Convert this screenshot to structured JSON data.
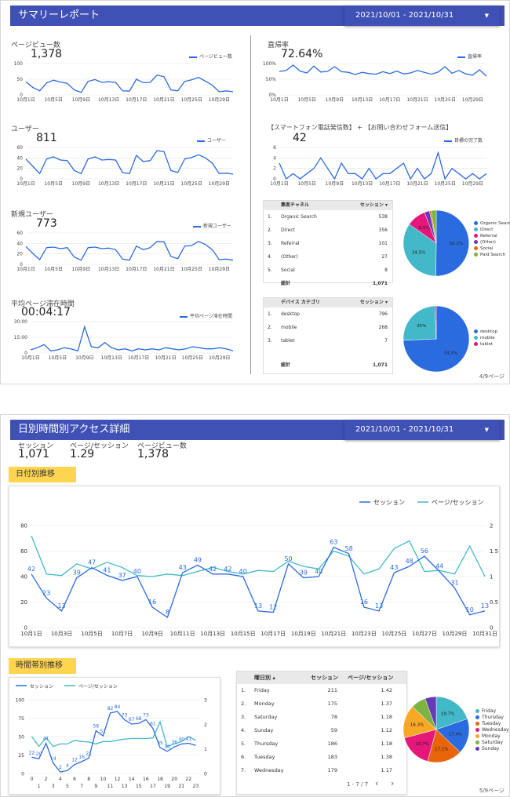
{
  "colors": {
    "blue": "#2b6be0",
    "teal": "#42b8c8",
    "banner": "#3f51b5",
    "yellow": "#ffd54f"
  },
  "page1": {
    "title": "サマリーレポート",
    "date_range": "2021/10/01 - 2021/10/31",
    "caret": "▼",
    "page_number": "4/9ページ",
    "x_ticks": [
      "10月1日",
      "10月5日",
      "10月9日",
      "10月13日",
      "10月17日",
      "10月21日",
      "10月25日",
      "10月29日"
    ],
    "metrics": {
      "pageviews": {
        "label": "ページビュー数",
        "value": "1,378",
        "legend": "ページビュー数",
        "y_ticks": [
          "0",
          "50",
          "100"
        ],
        "ymax": 100,
        "values": [
          42,
          24,
          13,
          38,
          47,
          41,
          37,
          16,
          8,
          43,
          49,
          40,
          42,
          40,
          13,
          12,
          50,
          39,
          40,
          63,
          58,
          16,
          13,
          43,
          48,
          56,
          44,
          31,
          10,
          13,
          10
        ]
      },
      "users": {
        "label": "ユーザー",
        "value": "811",
        "legend": "ユーザー",
        "y_ticks": [
          "0",
          "20",
          "40",
          "60"
        ],
        "ymax": 60,
        "values": [
          38,
          24,
          10,
          38,
          42,
          36,
          35,
          16,
          10,
          38,
          42,
          36,
          37,
          36,
          12,
          10,
          45,
          33,
          35,
          54,
          52,
          16,
          12,
          38,
          41,
          46,
          40,
          30,
          10,
          11,
          9
        ]
      },
      "new_users": {
        "label": "新規ユーザー",
        "value": "773",
        "legend": "新規ユーザー",
        "y_ticks": [
          "0",
          "20",
          "40",
          "60"
        ],
        "ymax": 60,
        "values": [
          34,
          21,
          9,
          32,
          33,
          30,
          32,
          14,
          8,
          32,
          33,
          30,
          31,
          28,
          10,
          8,
          35,
          28,
          32,
          44,
          43,
          15,
          11,
          35,
          36,
          44,
          38,
          28,
          9,
          10,
          8
        ]
      },
      "avg_time": {
        "label": "平均ページ滞在時間",
        "value": "00:04:17",
        "legend": "平均ページ滞在時間",
        "y_ticks": [
          "0",
          "15:00",
          "30:00"
        ],
        "ymax": 30,
        "values": [
          3,
          5,
          8,
          2,
          3,
          5,
          4,
          2,
          25,
          6,
          5,
          10,
          5,
          3,
          4,
          2,
          4,
          3,
          4,
          3,
          5,
          4,
          3,
          4,
          6,
          5,
          4,
          4,
          5,
          4,
          2
        ]
      },
      "bounce": {
        "label": "直帰率",
        "value": "72.64%",
        "legend": "直帰率",
        "y_ticks": [
          "0%",
          "50%",
          "100%"
        ],
        "ymax": 100,
        "values": [
          75,
          78,
          95,
          76,
          70,
          92,
          73,
          75,
          90,
          74,
          72,
          65,
          72,
          68,
          66,
          74,
          68,
          76,
          67,
          70,
          78,
          72,
          66,
          73,
          90,
          69,
          78,
          67,
          63,
          80,
          60
        ]
      },
      "goals": {
        "label": "【スマートフォン電話発信数】 + 【お問い合わせフォーム送信】",
        "value": "42",
        "legend": "目標の完了数",
        "y_ticks": [
          "0",
          "2",
          "4",
          "6"
        ],
        "ymax": 6,
        "values": [
          3,
          0,
          1,
          0,
          1,
          2,
          4,
          2,
          0,
          3,
          1,
          1,
          0,
          2,
          0,
          1,
          1,
          2,
          3,
          0,
          2,
          0,
          1,
          5,
          0,
          2,
          1,
          0,
          1,
          0,
          1
        ]
      }
    },
    "channel_table": {
      "headers": [
        "集客チャネル",
        "セッション ▾"
      ],
      "rows": [
        {
          "n": "1.",
          "name": "Organic Search",
          "sessions": "538"
        },
        {
          "n": "2.",
          "name": "Direct",
          "sessions": "356"
        },
        {
          "n": "3.",
          "name": "Referral",
          "sessions": "101"
        },
        {
          "n": "4.",
          "name": "(Other)",
          "sessions": "27"
        },
        {
          "n": "5.",
          "name": "Social",
          "sessions": "8"
        }
      ],
      "total_label": "総計",
      "total": "1,071"
    },
    "channel_pie": {
      "slices": [
        {
          "name": "Organic Search",
          "value": 50.2,
          "color": "#2b6be0",
          "label": "50.2%"
        },
        {
          "name": "Direct",
          "value": 34.5,
          "color": "#42b8c8",
          "label": "34.5%"
        },
        {
          "name": "Referral",
          "value": 9.5,
          "color": "#e5177b",
          "label": "9.5%"
        },
        {
          "name": "(Other)",
          "value": 2.5,
          "color": "#673ab7",
          "label": ""
        },
        {
          "name": "Social",
          "value": 0.8,
          "color": "#e8650c",
          "label": ""
        },
        {
          "name": "Paid Search",
          "value": 2.5,
          "color": "#7cb342",
          "label": ""
        }
      ]
    },
    "device_table": {
      "headers": [
        "デバイス カテゴリ",
        "セッション ▾"
      ],
      "rows": [
        {
          "n": "1.",
          "name": "desktop",
          "sessions": "796"
        },
        {
          "n": "2.",
          "name": "mobile",
          "sessions": "268"
        },
        {
          "n": "3.",
          "name": "tablet",
          "sessions": "7"
        }
      ],
      "total_label": "総計",
      "total": "1,071"
    },
    "device_pie": {
      "slices": [
        {
          "name": "desktop",
          "value": 74.3,
          "color": "#2b6be0",
          "label": "74.3%"
        },
        {
          "name": "mobile",
          "value": 25,
          "color": "#42b8c8",
          "label": "25%"
        },
        {
          "name": "tablet",
          "value": 0.7,
          "color": "#e5177b",
          "label": ""
        }
      ]
    }
  },
  "page2": {
    "title": "日別時間別アクセス詳細",
    "date_range": "2021/10/01 - 2021/10/31",
    "caret": "▼",
    "page_number": "5/9ページ",
    "kpis": [
      {
        "label": "セッション",
        "value": "1,071"
      },
      {
        "label": "ページ/セッション",
        "value": "1.29"
      },
      {
        "label": "ページビュー数",
        "value": "1,378"
      }
    ],
    "daily_heading": "日付別推移",
    "hourly_heading": "時間帯別推移",
    "weekday_table": {
      "headers": [
        "曜日別 ▴",
        "セッション",
        "ページ/セッション"
      ],
      "rows": [
        {
          "n": "1.",
          "day": "Friday",
          "sessions": "211",
          "pps": "1.42"
        },
        {
          "n": "2.",
          "day": "Monday",
          "sessions": "175",
          "pps": "1.37"
        },
        {
          "n": "3.",
          "day": "Saturday",
          "sessions": "78",
          "pps": "1.18"
        },
        {
          "n": "4.",
          "day": "Sunday",
          "sessions": "59",
          "pps": "1.12"
        },
        {
          "n": "5.",
          "day": "Thursday",
          "sessions": "186",
          "pps": "1.18"
        },
        {
          "n": "6.",
          "day": "Tuesday",
          "sessions": "183",
          "pps": "1.38"
        },
        {
          "n": "7.",
          "day": "Wednesday",
          "sessions": "179",
          "pps": "1.17"
        }
      ],
      "pager": "1 - 7 / 7",
      "prev": "‹",
      "next": "›"
    },
    "weekday_pie": {
      "slices": [
        {
          "name": "Friday",
          "value": 19.7,
          "color": "#42b8c8",
          "label": "19.7%"
        },
        {
          "name": "Thursday",
          "value": 17.4,
          "color": "#2b6be0",
          "label": "17.4%"
        },
        {
          "name": "Tuesday",
          "value": 17.1,
          "color": "#e8650c",
          "label": "17.1%"
        },
        {
          "name": "Wednesday",
          "value": 16.7,
          "color": "#e5177b",
          "label": "16.7%"
        },
        {
          "name": "Monday",
          "value": 16.3,
          "color": "#f9a825",
          "label": "16.3%"
        },
        {
          "name": "Saturday",
          "value": 7.3,
          "color": "#7cb342",
          "label": ""
        },
        {
          "name": "Sunday",
          "value": 5.5,
          "color": "#673ab7",
          "label": ""
        }
      ]
    }
  },
  "chart_data": [
    {
      "type": "line",
      "title": "日付別推移",
      "x": [
        "10月1日",
        "10月2日",
        "10月3日",
        "10月4日",
        "10月5日",
        "10月6日",
        "10月7日",
        "10月8日",
        "10月9日",
        "10月10日",
        "10月11日",
        "10月12日",
        "10月13日",
        "10月14日",
        "10月15日",
        "10月16日",
        "10月17日",
        "10月18日",
        "10月19日",
        "10月20日",
        "10月21日",
        "10月22日",
        "10月23日",
        "10月24日",
        "10月25日",
        "10月26日",
        "10月27日",
        "10月28日",
        "10月29日",
        "10月30日",
        "10月31日"
      ],
      "x_ticks": [
        "10月1日",
        "10月3日",
        "10月5日",
        "10月7日",
        "10月9日",
        "10月11日",
        "10月13日",
        "10月15日",
        "10月17日",
        "10月19日",
        "10月21日",
        "10月23日",
        "10月25日",
        "10月27日",
        "10月29日",
        "10月31日"
      ],
      "series": [
        {
          "name": "セッション",
          "axis": "left",
          "values": [
            42,
            23,
            13,
            39,
            47,
            41,
            37,
            40,
            16,
            8,
            43,
            49,
            42,
            42,
            40,
            13,
            12,
            50,
            39,
            40,
            63,
            58,
            16,
            13,
            43,
            48,
            56,
            44,
            31,
            10,
            13
          ],
          "labels": [
            "42",
            "23",
            "13",
            "39",
            "47",
            "41",
            "37",
            "40",
            "16",
            "8",
            "43",
            "49",
            "42",
            "42",
            "40",
            "13",
            "12",
            "50",
            "39",
            "40",
            "63",
            "58",
            "16",
            "13",
            "43",
            "48",
            "56",
            "44",
            "31",
            "10",
            "13"
          ]
        },
        {
          "name": "ページ/セッション",
          "axis": "right",
          "values": [
            1.8,
            1.05,
            1.02,
            1.25,
            1.15,
            1.28,
            1.18,
            1.02,
            1.0,
            1.05,
            1.02,
            1.1,
            1.18,
            1.1,
            1.05,
            1.12,
            1.1,
            1.3,
            1.2,
            1.15,
            1.5,
            1.4,
            1.05,
            1.15,
            1.55,
            1.7,
            1.1,
            1.12,
            1.05,
            1.6,
            1.0
          ]
        }
      ],
      "ylim_left": [
        0,
        80
      ],
      "y_ticks_left": [
        "0",
        "20",
        "40",
        "60",
        "80"
      ],
      "ylim_right": [
        0,
        2
      ],
      "y_ticks_right": [
        "0",
        "0.5",
        "1",
        "1.5",
        "2"
      ],
      "legend_position": "top-right"
    },
    {
      "type": "line",
      "title": "時間帯別推移",
      "x": [
        "0",
        "1",
        "2",
        "3",
        "4",
        "5",
        "6",
        "7",
        "8",
        "9",
        "10",
        "11",
        "12",
        "13",
        "14",
        "15",
        "16",
        "17",
        "18",
        "19",
        "20",
        "21",
        "22",
        "23"
      ],
      "x_ticks_top": [
        "0",
        "2",
        "4",
        "6",
        "8",
        "10",
        "12",
        "14",
        "16",
        "18",
        "20",
        "22"
      ],
      "x_ticks_bottom": [
        "1",
        "3",
        "5",
        "7",
        "9",
        "11",
        "13",
        "15",
        "17",
        "19",
        "21",
        "23"
      ],
      "series": [
        {
          "name": "セッション",
          "axis": "left",
          "values": [
            22,
            20,
            41,
            14,
            2,
            4,
            12,
            16,
            21,
            58,
            51,
            82,
            84,
            73,
            67,
            68,
            73,
            61,
            35,
            30,
            36,
            40,
            41,
            38
          ],
          "labels": [
            "22",
            "20",
            "41",
            "14",
            "2",
            "4",
            "12",
            "16",
            "21",
            "58",
            "51",
            "82",
            "84",
            "73",
            "67",
            "68",
            "73",
            "61",
            "35",
            "30",
            "36",
            "40",
            "41",
            ""
          ]
        },
        {
          "name": "ページ/セッション",
          "axis": "right",
          "values": [
            1.5,
            1.1,
            1.45,
            1.1,
            1.2,
            1.2,
            1.35,
            1.3,
            1.28,
            1.2,
            1.3,
            1.3,
            1.35,
            1.4,
            1.42,
            1.42,
            1.42,
            1.45,
            2.1,
            1.1,
            1.2,
            1.3,
            1.5,
            1.35
          ]
        }
      ],
      "ylim_left": [
        0,
        100
      ],
      "y_ticks_left": [
        "0",
        "25",
        "50",
        "75",
        "100"
      ],
      "ylim_right": [
        0,
        3
      ],
      "y_ticks_right": [
        "0",
        "1",
        "2",
        "3"
      ],
      "legend_position": "top-left"
    }
  ]
}
